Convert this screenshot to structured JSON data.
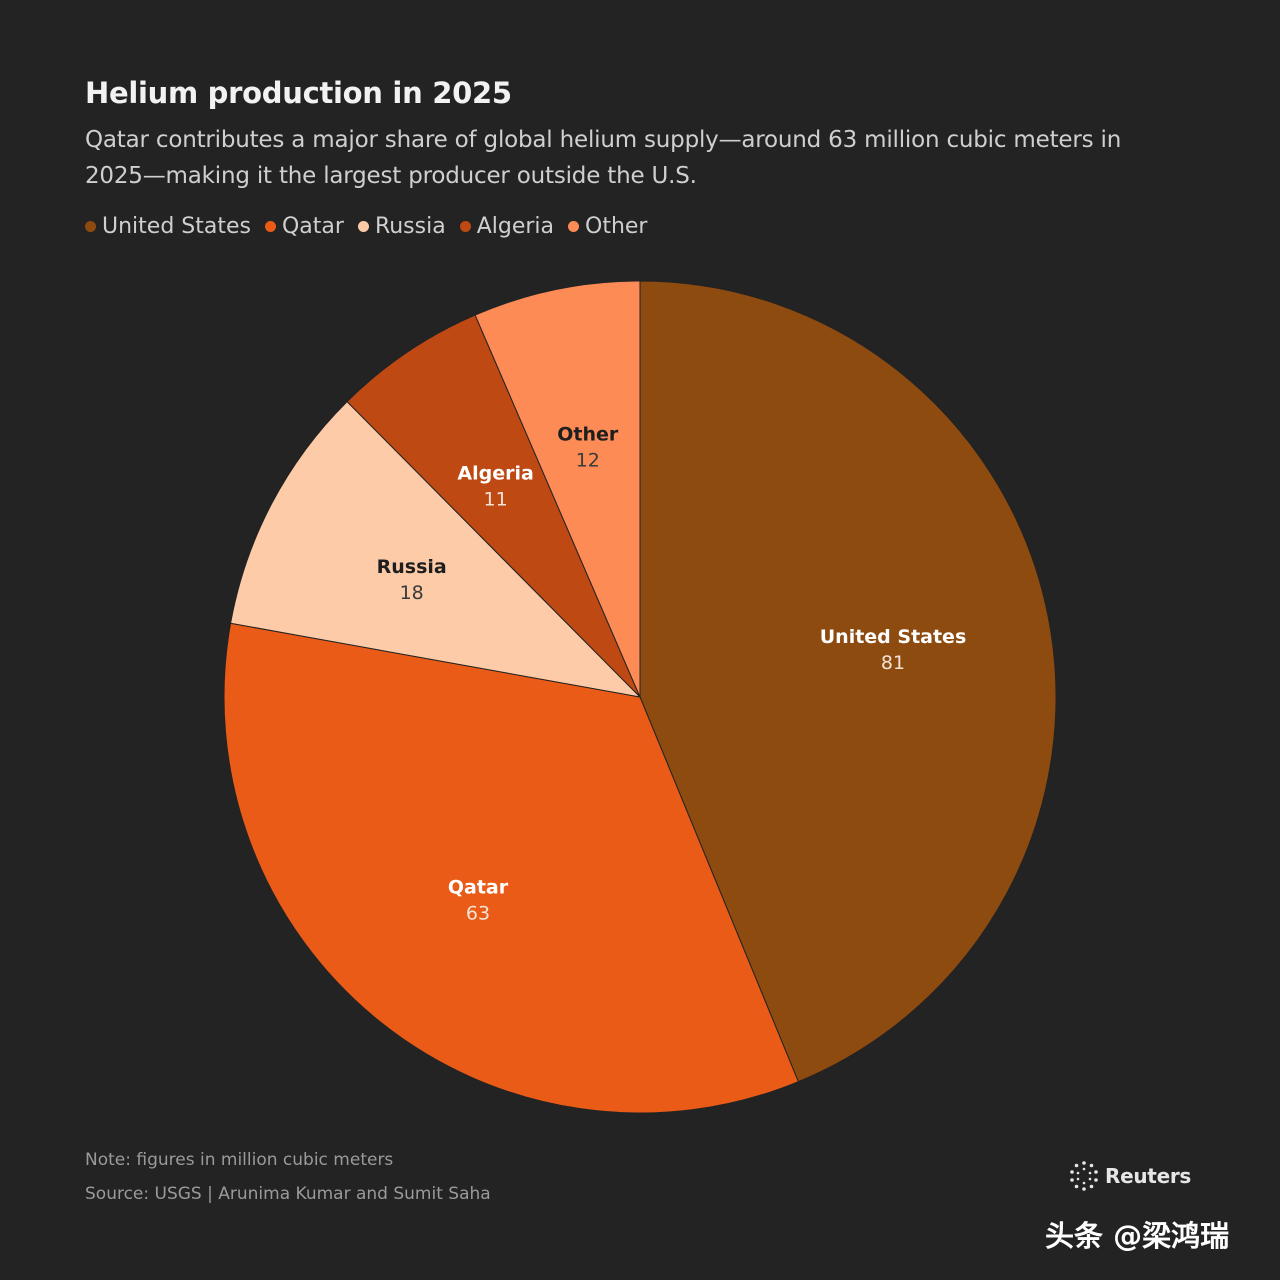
{
  "header": {
    "title": "Helium production in 2025",
    "subtitle": "Qatar contributes a major share of global helium supply—around 63 million cubic meters in 2025—making it the largest producer outside the U.S."
  },
  "chart_data": {
    "type": "pie",
    "title": "Helium production in 2025",
    "legend_position": "top-left",
    "slices": [
      {
        "label": "United States",
        "value": 81,
        "color": "#8e4b0f"
      },
      {
        "label": "Qatar",
        "value": 63,
        "color": "#ea5b18"
      },
      {
        "label": "Russia",
        "value": 18,
        "color": "#fdcba7"
      },
      {
        "label": "Algeria",
        "value": 11,
        "color": "#bf4913"
      },
      {
        "label": "Other",
        "value": 12,
        "color": "#fd8b56"
      }
    ]
  },
  "footer": {
    "note": "Note: figures in million cubic meters",
    "source": "Source: USGS | Arunima Kumar and Sumit Saha",
    "logo_label": "Reuters",
    "logo_icon": "reuters-dot-ring-icon",
    "watermark": "头条 @梁鸿瑞"
  }
}
